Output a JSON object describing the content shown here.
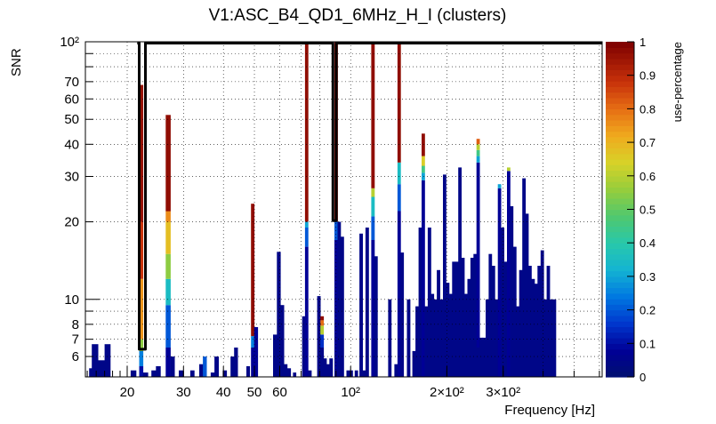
{
  "chart_data": {
    "type": "heatmap",
    "title": "V1:ASC_B4_QD1_6MHz_H_I (clusters)",
    "xlabel": "Frequency [Hz]",
    "ylabel": "SNR",
    "zlabel": "use-percentage",
    "xscale": "log",
    "yscale": "log",
    "xlim": [
      14.8,
      612
    ],
    "ylim": [
      5.0,
      100
    ],
    "zlim": [
      0,
      1
    ],
    "x_tick_labels": [
      {
        "value": 20,
        "label": "20"
      },
      {
        "value": 30,
        "label": "30"
      },
      {
        "value": 40,
        "label": "40"
      },
      {
        "value": 50,
        "label": "50"
      },
      {
        "value": 60,
        "label": "60"
      },
      {
        "value": 100,
        "label": "10²"
      },
      {
        "value": 200,
        "label": "2×10²"
      },
      {
        "value": 300,
        "label": "3×10²"
      }
    ],
    "y_tick_labels": [
      {
        "value": 6,
        "label": "6"
      },
      {
        "value": 7,
        "label": "7"
      },
      {
        "value": 8,
        "label": "8"
      },
      {
        "value": 10,
        "label": "10"
      },
      {
        "value": 20,
        "label": "20"
      },
      {
        "value": 30,
        "label": "30"
      },
      {
        "value": 40,
        "label": "40"
      },
      {
        "value": 50,
        "label": "50"
      },
      {
        "value": 60,
        "label": "60"
      },
      {
        "value": 70,
        "label": "70"
      },
      {
        "value": 100,
        "label": "10²"
      }
    ],
    "z_tick_labels": [
      "0",
      "0.1",
      "0.2",
      "0.3",
      "0.4",
      "0.5",
      "0.6",
      "0.7",
      "0.8",
      "0.9",
      "1"
    ],
    "columns": [
      {
        "f": [
          15.2,
          15.5
        ],
        "top": 5.4,
        "z": 0.05
      },
      {
        "f": [
          15.5,
          16.2
        ],
        "top": 6.7,
        "z": 0.05
      },
      {
        "f": [
          16.2,
          17.0
        ],
        "top": 5.8,
        "z": 0.05
      },
      {
        "f": [
          17.0,
          17.7
        ],
        "top": 6.7,
        "z": 0.05
      },
      {
        "f": [
          20.5,
          21.3
        ],
        "top": 5.3,
        "z": 0.05
      },
      {
        "f": [
          21.8,
          22.4
        ],
        "top": 68,
        "segs": [
          [
            5.0,
            5.5,
            0.1
          ],
          [
            5.5,
            6.3,
            0.25
          ],
          [
            6.3,
            7,
            0.55
          ],
          [
            7,
            12,
            0.75
          ],
          [
            12,
            20,
            0.88
          ],
          [
            20,
            68,
            0.96
          ]
        ]
      },
      {
        "f": [
          22.4,
          23.2
        ],
        "top": 5.2,
        "z": 0.05
      },
      {
        "f": [
          23.8,
          24.6
        ],
        "top": 5.3,
        "z": 0.05
      },
      {
        "f": [
          24.6,
          25.4
        ],
        "top": 5.5,
        "z": 0.05
      },
      {
        "f": [
          26.4,
          27.3
        ],
        "top": 52,
        "segs": [
          [
            5.0,
            6.5,
            0.08
          ],
          [
            6.5,
            9.5,
            0.2
          ],
          [
            9.5,
            12,
            0.35
          ],
          [
            12,
            15,
            0.55
          ],
          [
            15,
            20,
            0.68
          ],
          [
            20,
            22,
            0.76
          ],
          [
            22,
            52,
            0.97
          ]
        ]
      },
      {
        "f": [
          27.3,
          28.1
        ],
        "top": 6.0,
        "z": 0.05
      },
      {
        "f": [
          29.0,
          29.9
        ],
        "top": 5.3,
        "z": 0.05
      },
      {
        "f": [
          31.5,
          32.4
        ],
        "top": 5.3,
        "z": 0.05
      },
      {
        "f": [
          33.6,
          34.5
        ],
        "top": 5.6,
        "z": 0.05
      },
      {
        "f": [
          34.5,
          35.4
        ],
        "top": 6.0,
        "z": 0.2
      },
      {
        "f": [
          36.5,
          37.5
        ],
        "top": 5.2,
        "z": 0.05
      },
      {
        "f": [
          37.5,
          38.6
        ],
        "top": 6.0,
        "z": 0.05
      },
      {
        "f": [
          39.8,
          40.9
        ],
        "top": 5.3,
        "z": 0.05
      },
      {
        "f": [
          42.1,
          43.2
        ],
        "top": 6.0,
        "z": 0.05
      },
      {
        "f": [
          43.2,
          44.3
        ],
        "top": 6.5,
        "z": 0.05
      },
      {
        "f": [
          47.2,
          48.3
        ],
        "top": 5.5,
        "z": 0.05
      },
      {
        "f": [
          48.8,
          49.9
        ],
        "top": 23.5,
        "segs": [
          [
            5.0,
            6.5,
            0.08
          ],
          [
            6.5,
            7.2,
            0.25
          ],
          [
            7.2,
            23.5,
            0.97
          ]
        ]
      },
      {
        "f": [
          49.9,
          51.2
        ],
        "top": 7.8,
        "z": 0.08
      },
      {
        "f": [
          57.2,
          58.8
        ],
        "top": 7.3,
        "z": 0.05
      },
      {
        "f": [
          58.8,
          60.3
        ],
        "top": 15.3,
        "z": 0.05
      },
      {
        "f": [
          60.3,
          61.8
        ],
        "top": 9.5,
        "z": 0.05
      },
      {
        "f": [
          61.8,
          63.3
        ],
        "top": 5.6,
        "z": 0.05
      },
      {
        "f": [
          63.3,
          64.9
        ],
        "top": 5.4,
        "z": 0.05
      },
      {
        "f": [
          66.0,
          67.4
        ],
        "top": 5.2,
        "z": 0.05
      },
      {
        "f": [
          70.5,
          72.0
        ],
        "top": 8.6,
        "z": 0.05
      },
      {
        "f": [
          72.0,
          73.6
        ],
        "top": 100,
        "segs": [
          [
            5.0,
            16,
            0.08
          ],
          [
            16,
            19,
            0.2
          ],
          [
            19,
            20,
            0.3
          ],
          [
            20,
            100,
            0.97
          ]
        ]
      },
      {
        "f": [
          73.6,
          75.3
        ],
        "top": 5.3,
        "z": 0.05
      },
      {
        "f": [
          78.6,
          80.4
        ],
        "top": 10.3,
        "z": 0.05
      },
      {
        "f": [
          80.4,
          82.2
        ],
        "top": 8.6,
        "segs": [
          [
            5.0,
            6.5,
            0.05
          ],
          [
            6.5,
            7.3,
            0.15
          ],
          [
            7.3,
            7.9,
            0.6
          ],
          [
            7.9,
            8.3,
            0.8
          ],
          [
            8.3,
            8.6,
            0.97
          ]
        ]
      },
      {
        "f": [
          82.2,
          84.0
        ],
        "top": 5.9,
        "z": 0.05
      },
      {
        "f": [
          84.0,
          85.8
        ],
        "top": 5.6,
        "z": 0.05
      },
      {
        "f": [
          85.8,
          87.8
        ],
        "top": 5.9,
        "z": 0.05
      },
      {
        "f": [
          89.0,
          91.0
        ],
        "top": 100,
        "segs": [
          [
            5.0,
            17,
            0.08
          ],
          [
            17,
            20,
            0.2
          ],
          [
            20,
            100,
            0.97
          ]
        ]
      },
      {
        "f": [
          91.0,
          93.0
        ],
        "top": 20,
        "z": 0.05
      },
      {
        "f": [
          93.0,
          95.1
        ],
        "top": 17.5,
        "z": 0.05
      },
      {
        "f": [
          97.0,
          99.2
        ],
        "top": 5.3,
        "z": 0.05
      },
      {
        "f": [
          99.2,
          101.4
        ],
        "top": 5.3,
        "z": 0.05
      },
      {
        "f": [
          103.0,
          105.3
        ],
        "top": 5.3,
        "z": 0.05
      },
      {
        "f": [
          106.5,
          108.9
        ],
        "top": 18,
        "z": 0.05
      },
      {
        "f": [
          108.9,
          111.3
        ],
        "top": 5.3,
        "z": 0.05
      },
      {
        "f": [
          111.3,
          113.8
        ],
        "top": 19,
        "z": 0.05
      },
      {
        "f": [
          116.0,
          118.6
        ],
        "top": 100,
        "segs": [
          [
            5.0,
            17,
            0.08
          ],
          [
            17,
            21,
            0.2
          ],
          [
            21,
            25,
            0.35
          ],
          [
            25,
            27,
            0.6
          ],
          [
            27,
            100,
            0.97
          ]
        ]
      },
      {
        "f": [
          118.6,
          121.2
        ],
        "top": 14.7,
        "z": 0.05
      },
      {
        "f": [
          131.0,
          133.9
        ],
        "top": 10,
        "z": 0.05
      },
      {
        "f": [
          137.0,
          140.1
        ],
        "top": 5.6,
        "z": 0.05
      },
      {
        "f": [
          140.1,
          143.2
        ],
        "top": 100,
        "segs": [
          [
            5.0,
            22,
            0.08
          ],
          [
            22,
            28,
            0.2
          ],
          [
            28,
            34,
            0.35
          ],
          [
            34,
            100,
            0.97
          ]
        ]
      },
      {
        "f": [
          143.2,
          146.4
        ],
        "top": 15.2,
        "z": 0.05
      },
      {
        "f": [
          150.0,
          153.4
        ],
        "top": 10,
        "z": 0.05
      },
      {
        "f": [
          156.0,
          159.5
        ],
        "top": 6.3,
        "z": 0.05
      },
      {
        "f": [
          159.5,
          163.1
        ],
        "top": 9.4,
        "z": 0.05
      },
      {
        "f": [
          163.1,
          166.7
        ],
        "top": 19,
        "z": 0.05
      },
      {
        "f": [
          166.7,
          170.4
        ],
        "top": 44,
        "segs": [
          [
            5.0,
            29,
            0.08
          ],
          [
            29,
            31,
            0.3
          ],
          [
            31,
            33,
            0.45
          ],
          [
            33,
            36,
            0.65
          ],
          [
            36,
            44,
            0.97
          ]
        ]
      },
      {
        "f": [
          170.4,
          174.2
        ],
        "top": 9.4,
        "z": 0.05
      },
      {
        "f": [
          174.2,
          178.1
        ],
        "top": 19,
        "z": 0.05
      },
      {
        "f": [
          178.1,
          182.0
        ],
        "top": 10.5,
        "z": 0.05
      },
      {
        "f": [
          182.0,
          186.0
        ],
        "top": 10,
        "z": 0.05
      },
      {
        "f": [
          186.0,
          190.2
        ],
        "top": 13,
        "z": 0.05
      },
      {
        "f": [
          190.2,
          194.4
        ],
        "top": 10,
        "z": 0.05
      },
      {
        "f": [
          194.4,
          198.7
        ],
        "top": 30.5,
        "z": 0.05
      },
      {
        "f": [
          198.7,
          203.2
        ],
        "top": 11.6,
        "z": 0.05
      },
      {
        "f": [
          203.2,
          207.7
        ],
        "top": 10.5,
        "z": 0.05
      },
      {
        "f": [
          207.7,
          212.3
        ],
        "top": 14,
        "z": 0.05
      },
      {
        "f": [
          212.3,
          217.0
        ],
        "top": 14,
        "z": 0.05
      },
      {
        "f": [
          217.0,
          221.8
        ],
        "top": 32.5,
        "z": 0.05
      },
      {
        "f": [
          221.8,
          226.7
        ],
        "top": 14.5,
        "z": 0.05
      },
      {
        "f": [
          226.7,
          231.8
        ],
        "top": 10.5,
        "z": 0.05
      },
      {
        "f": [
          231.8,
          236.9
        ],
        "top": 12,
        "z": 0.05
      },
      {
        "f": [
          236.9,
          242.2
        ],
        "top": 14.5,
        "z": 0.05
      },
      {
        "f": [
          242.2,
          247.6
        ],
        "top": 15,
        "z": 0.05
      },
      {
        "f": [
          247.6,
          253.1
        ],
        "top": 42,
        "segs": [
          [
            5.0,
            6.5,
            0.05
          ],
          [
            6.5,
            34,
            0.08
          ],
          [
            34,
            36,
            0.3
          ],
          [
            36,
            38,
            0.45
          ],
          [
            38,
            40,
            0.6
          ],
          [
            40,
            42,
            0.82
          ]
        ]
      },
      {
        "f": [
          253.1,
          258.7
        ],
        "top": 7.1,
        "z": 0.05
      },
      {
        "f": [
          258.7,
          264.4
        ],
        "top": 7.1,
        "z": 0.05
      },
      {
        "f": [
          264.4,
          270.3
        ],
        "top": 10,
        "z": 0.05
      },
      {
        "f": [
          270.3,
          276.3
        ],
        "top": 15,
        "z": 0.05
      },
      {
        "f": [
          276.3,
          282.4
        ],
        "top": 13.5,
        "z": 0.05
      },
      {
        "f": [
          282.4,
          288.7
        ],
        "top": 10,
        "z": 0.05
      },
      {
        "f": [
          288.7,
          295.1
        ],
        "top": 28,
        "segs": [
          [
            5.0,
            27,
            0.08
          ],
          [
            27,
            28,
            0.3
          ]
        ]
      },
      {
        "f": [
          295.1,
          301.7
        ],
        "top": 19,
        "z": 0.05
      },
      {
        "f": [
          301.7,
          308.4
        ],
        "top": 14,
        "z": 0.05
      },
      {
        "f": [
          308.4,
          315.2
        ],
        "top": 32.5,
        "segs": [
          [
            5.0,
            31.5,
            0.08
          ],
          [
            31.5,
            32.5,
            0.6
          ]
        ]
      },
      {
        "f": [
          315.2,
          322.2
        ],
        "top": 23,
        "z": 0.05
      },
      {
        "f": [
          322.2,
          329.4
        ],
        "top": 16,
        "z": 0.05
      },
      {
        "f": [
          329.4,
          336.7
        ],
        "top": 9.4,
        "z": 0.05
      },
      {
        "f": [
          336.7,
          344.2
        ],
        "top": 13,
        "z": 0.05
      },
      {
        "f": [
          344.2,
          351.9
        ],
        "top": 29.5,
        "z": 0.05
      },
      {
        "f": [
          351.9,
          359.7
        ],
        "top": 21.5,
        "z": 0.05
      },
      {
        "f": [
          359.7,
          367.7
        ],
        "top": 13.5,
        "z": 0.05
      },
      {
        "f": [
          367.7,
          375.9
        ],
        "top": 12,
        "z": 0.05
      },
      {
        "f": [
          375.9,
          384.2
        ],
        "top": 11.5,
        "z": 0.05
      },
      {
        "f": [
          384.2,
          392.8
        ],
        "top": 13.5,
        "z": 0.05
      },
      {
        "f": [
          392.8,
          401.5
        ],
        "top": 15.5,
        "z": 0.05
      },
      {
        "f": [
          401.5,
          410.4
        ],
        "top": 10,
        "z": 0.05
      },
      {
        "f": [
          410.4,
          419.5
        ],
        "top": 13.5,
        "z": 0.05
      },
      {
        "f": [
          419.5,
          428.8
        ],
        "top": 10,
        "z": 0.05
      },
      {
        "f": [
          428.8,
          438.3
        ],
        "top": 10,
        "z": 0.05
      }
    ],
    "outline": [
      [
        21.5,
        100
      ],
      [
        21.8,
        100
      ],
      [
        21.8,
        6.4
      ],
      [
        22.8,
        6.4
      ],
      [
        22.8,
        100
      ],
      [
        88.0,
        100
      ],
      [
        88.0,
        20.2
      ],
      [
        90.2,
        20.2
      ],
      [
        90.2,
        100
      ],
      [
        612,
        100
      ]
    ]
  }
}
